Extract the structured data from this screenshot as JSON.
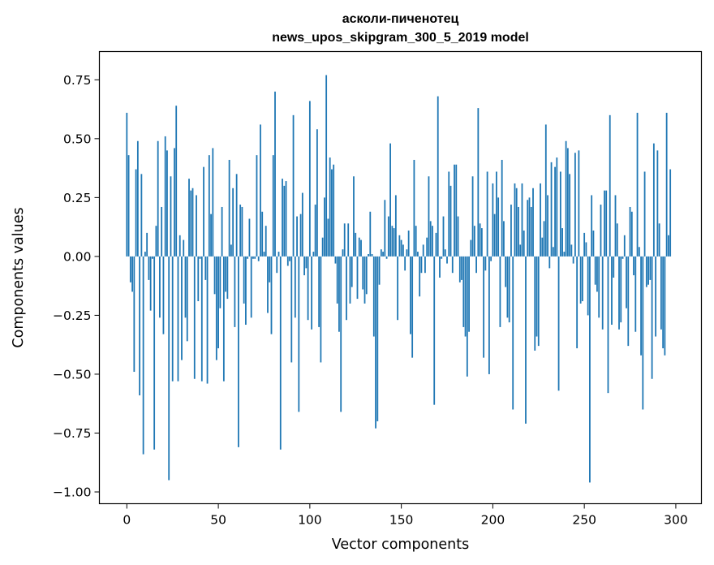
{
  "chart_data": {
    "type": "bar",
    "title": [
      "асколи-пиченотец",
      "news_upos_skipgram_300_5_2019 model"
    ],
    "xlabel": "Vector components",
    "ylabel": "Components values",
    "xlim": [
      -15,
      314
    ],
    "ylim": [
      -1.05,
      0.87
    ],
    "x_ticks": [
      0,
      50,
      100,
      150,
      200,
      250,
      300
    ],
    "x_tick_labels": [
      "0",
      "50",
      "100",
      "150",
      "200",
      "250",
      "300"
    ],
    "y_ticks": [
      0.75,
      0.5,
      0.25,
      0.0,
      -0.25,
      -0.5,
      -0.75,
      -1.0
    ],
    "y_tick_labels": [
      "0.75",
      "0.50",
      "0.25",
      "0.00",
      "−0.25",
      "−0.50",
      "−0.75",
      "−1.00"
    ],
    "grid": false,
    "bar_color": "#1f77b4",
    "values": [
      0.61,
      0.43,
      -0.11,
      -0.15,
      -0.49,
      0.37,
      0.49,
      -0.59,
      0.35,
      -0.84,
      0.02,
      0.1,
      -0.1,
      -0.23,
      -0.01,
      -0.82,
      0.13,
      0.49,
      -0.26,
      0.21,
      -0.33,
      0.51,
      0.45,
      -0.95,
      0.34,
      -0.53,
      0.46,
      0.64,
      -0.53,
      0.09,
      -0.44,
      0.07,
      -0.26,
      -0.36,
      0.33,
      0.28,
      0.29,
      -0.52,
      0.26,
      -0.19,
      -0.01,
      -0.53,
      0.38,
      -0.1,
      -0.54,
      0.43,
      0.18,
      0.46,
      -0.16,
      -0.44,
      -0.39,
      -0.22,
      0.21,
      -0.53,
      -0.15,
      -0.18,
      0.41,
      0.05,
      0.29,
      -0.3,
      0.35,
      -0.81,
      0.22,
      0.21,
      -0.2,
      -0.29,
      -0.01,
      0.16,
      -0.26,
      -0.01,
      -0.01,
      0.43,
      -0.02,
      0.56,
      0.19,
      0.02,
      0.13,
      -0.24,
      -0.11,
      -0.33,
      0.43,
      0.7,
      -0.07,
      0.02,
      -0.82,
      0.33,
      0.3,
      0.32,
      -0.04,
      -0.02,
      -0.45,
      0.6,
      -0.26,
      0.17,
      -0.66,
      0.18,
      0.27,
      -0.08,
      -0.05,
      -0.27,
      0.66,
      -0.31,
      0.02,
      0.22,
      0.54,
      -0.3,
      -0.45,
      0.08,
      0.25,
      0.77,
      0.16,
      0.42,
      0.37,
      0.39,
      -0.03,
      -0.2,
      -0.32,
      -0.66,
      0.03,
      0.14,
      -0.27,
      0.14,
      -0.2,
      -0.13,
      0.34,
      0.1,
      -0.18,
      0.08,
      0.07,
      -0.14,
      -0.2,
      -0.16,
      0.01,
      0.19,
      0.01,
      -0.34,
      -0.73,
      -0.7,
      -0.12,
      0.03,
      0.02,
      0.24,
      -0.01,
      0.17,
      0.48,
      0.13,
      0.12,
      0.26,
      -0.27,
      0.09,
      0.07,
      0.05,
      -0.06,
      0.03,
      0.11,
      -0.33,
      -0.43,
      0.41,
      0.13,
      0.02,
      -0.17,
      -0.07,
      0.05,
      -0.07,
      0.08,
      0.34,
      0.15,
      0.13,
      -0.63,
      0.1,
      0.68,
      -0.09,
      -0.01,
      0.17,
      0.03,
      -0.03,
      0.36,
      0.3,
      -0.07,
      0.39,
      0.39,
      0.17,
      -0.11,
      -0.1,
      -0.3,
      -0.34,
      -0.51,
      -0.32,
      0.07,
      0.34,
      0.13,
      -0.07,
      0.63,
      0.14,
      0.12,
      -0.43,
      -0.06,
      0.36,
      -0.5,
      -0.02,
      0.31,
      0.18,
      0.36,
      0.25,
      -0.3,
      0.41,
      0.15,
      -0.13,
      -0.26,
      -0.28,
      0.22,
      -0.65,
      0.31,
      0.29,
      0.21,
      0.05,
      0.31,
      0.11,
      -0.71,
      0.24,
      0.25,
      0.21,
      0.29,
      -0.4,
      -0.34,
      -0.38,
      0.31,
      0.08,
      0.15,
      0.56,
      0.26,
      -0.05,
      0.4,
      0.04,
      0.38,
      0.42,
      -0.57,
      0.36,
      0.12,
      0.02,
      0.49,
      0.46,
      0.35,
      0.05,
      -0.03,
      0.44,
      -0.39,
      0.45,
      -0.2,
      -0.19,
      0.1,
      0.06,
      -0.25,
      -0.96,
      0.26,
      0.11,
      -0.12,
      -0.15,
      -0.26,
      0.22,
      -0.31,
      0.28,
      0.28,
      -0.58,
      0.6,
      -0.29,
      -0.09,
      0.26,
      0.14,
      -0.31,
      -0.28,
      -0.01,
      0.09,
      -0.22,
      -0.38,
      0.21,
      0.19,
      -0.08,
      -0.32,
      0.61,
      0.04,
      -0.42,
      -0.65,
      0.36,
      -0.13,
      -0.12,
      -0.1,
      -0.52,
      0.48,
      -0.34,
      0.45,
      0.14,
      -0.31,
      -0.39,
      -0.42,
      0.61,
      0.09,
      0.37
    ]
  }
}
